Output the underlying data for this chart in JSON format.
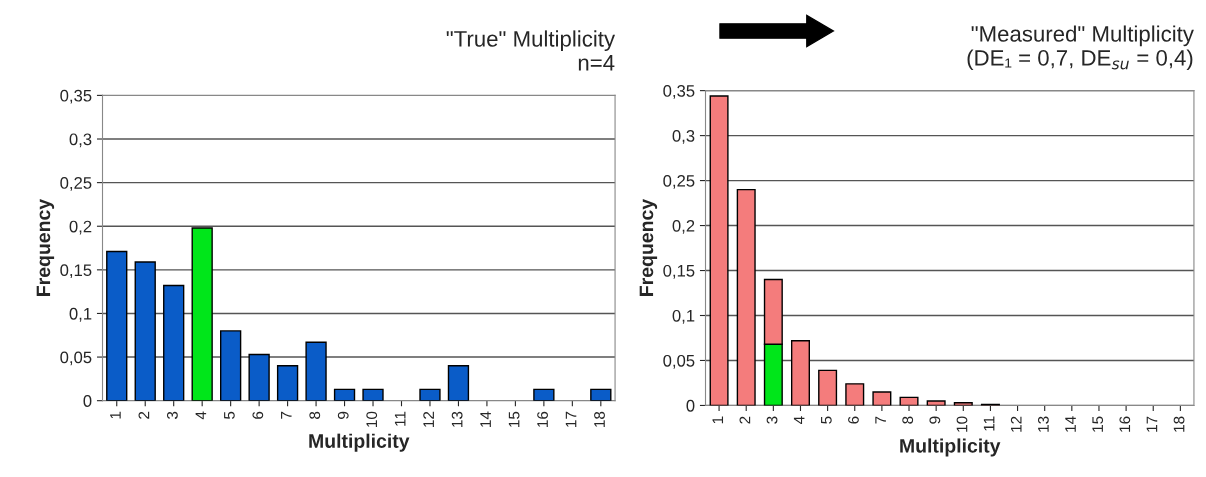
{
  "chart_data": [
    {
      "type": "bar",
      "title": "\"True\" Multiplicity\nn=4",
      "xlabel": "Multiplicity",
      "ylabel": "Frequency",
      "categories": [
        "1",
        "2",
        "3",
        "4",
        "5",
        "6",
        "7",
        "8",
        "9",
        "10",
        "11",
        "12",
        "13",
        "14",
        "15",
        "16",
        "17",
        "18"
      ],
      "values": [
        0.171,
        0.159,
        0.132,
        0.198,
        0.08,
        0.053,
        0.04,
        0.067,
        0.013,
        0.013,
        null,
        0.013,
        0.04,
        null,
        null,
        0.013,
        null,
        0.013
      ],
      "colors": [
        "#0a5cc8",
        "#0a5cc8",
        "#0a5cc8",
        "#00e61a",
        "#0a5cc8",
        "#0a5cc8",
        "#0a5cc8",
        "#0a5cc8",
        "#0a5cc8",
        "#0a5cc8",
        "#0a5cc8",
        "#0a5cc8",
        "#0a5cc8",
        "#0a5cc8",
        "#0a5cc8",
        "#0a5cc8",
        "#0a5cc8",
        "#0a5cc8"
      ],
      "ylim": [
        0,
        0.35
      ],
      "yticks": [
        0,
        {
          "value": 0.05,
          "label": "0,05"
        },
        {
          "value": 0.1,
          "label": "0,1"
        },
        {
          "value": 0.15,
          "label": "0,15"
        },
        {
          "value": 0.2,
          "label": "0,2"
        },
        {
          "value": 0.25,
          "label": "0,25"
        },
        {
          "value": 0.3,
          "label": "0,3"
        },
        {
          "value": 0.35,
          "label": "0,35"
        }
      ],
      "grid": "y"
    },
    {
      "type": "bar",
      "stacked": true,
      "title": "\"Measured\" Multiplicity\n(DE₁ = 0,7, DE$_{su}$ = 0,4)",
      "xlabel": "Multiplicity",
      "ylabel": "Frequency",
      "categories": [
        "1",
        "2",
        "3",
        "4",
        "5",
        "6",
        "7",
        "8",
        "9",
        "10",
        "11",
        "12",
        "13",
        "14",
        "15",
        "16",
        "17",
        "18"
      ],
      "series": [
        {
          "color": "#00e61a",
          "values": [
            null,
            null,
            0.068,
            null,
            null,
            null,
            null,
            null,
            null,
            null,
            null,
            null,
            null,
            null,
            null,
            null,
            null,
            null
          ]
        },
        {
          "color": "#f47c7c",
          "values": [
            0.344,
            0.24,
            0.072,
            0.072,
            0.039,
            0.024,
            0.015,
            0.009,
            0.005,
            0.003,
            0.001,
            null,
            null,
            null,
            null,
            null,
            null,
            null
          ]
        }
      ],
      "ylim": [
        0,
        0.35
      ],
      "yticks": [
        0,
        {
          "value": 0.05,
          "label": "0,05"
        },
        {
          "value": 0.1,
          "label": "0,1"
        },
        {
          "value": 0.15,
          "label": "0,15"
        },
        {
          "value": 0.2,
          "label": "0,2"
        },
        {
          "value": 0.25,
          "label": "0,25"
        },
        {
          "value": 0.3,
          "label": "0,3"
        },
        {
          "value": 0.35,
          "label": "0,35"
        }
      ],
      "grid": "y"
    }
  ]
}
